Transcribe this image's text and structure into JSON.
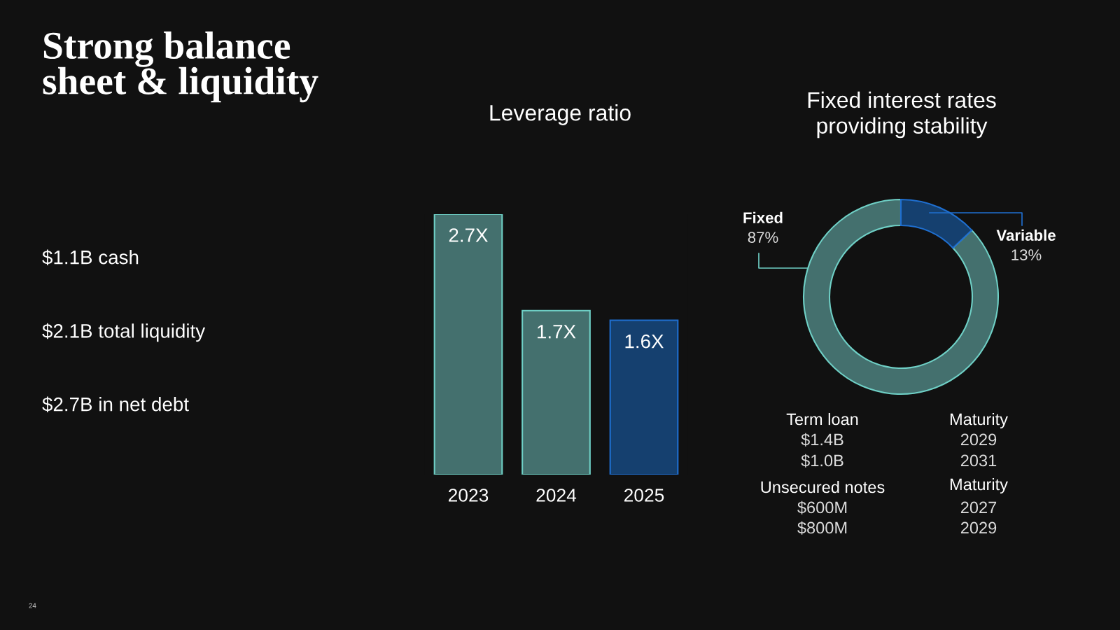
{
  "chart_data": [
    {
      "type": "other",
      "title": "Strong balance\nsheet & liquidity",
      "annotations": [
        "$1.1B cash",
        "$2.1B total liquidity",
        "$2.7B in net debt",
        "24"
      ]
    },
    {
      "type": "bar",
      "title": "Leverage ratio",
      "categories": [
        "2023",
        "2024",
        "2025"
      ],
      "values": [
        2.7,
        1.7,
        1.6
      ],
      "colors": [
        "#44706e",
        "#44706e",
        "#15406f"
      ],
      "value_labels": [
        "2.7X",
        "1.7X",
        "1.6X"
      ],
      "grid": false,
      "legend": false
    },
    {
      "type": "donut",
      "title": "Fixed interest rates\nproviding stability",
      "categories": [
        "Fixed",
        "Variable"
      ],
      "values": [
        87,
        13
      ],
      "colors": [
        "#44706e",
        "#15406f"
      ],
      "value_labels": [
        "87%",
        "13%"
      ],
      "legend": false,
      "annotations": [
        "Term loan",
        "$1.4B",
        "$1.0B",
        "Maturity",
        "2029",
        "2031",
        "Unsecured notes",
        "$600M",
        "$800M",
        "Maturity",
        "2027",
        "2029"
      ]
    }
  ]
}
